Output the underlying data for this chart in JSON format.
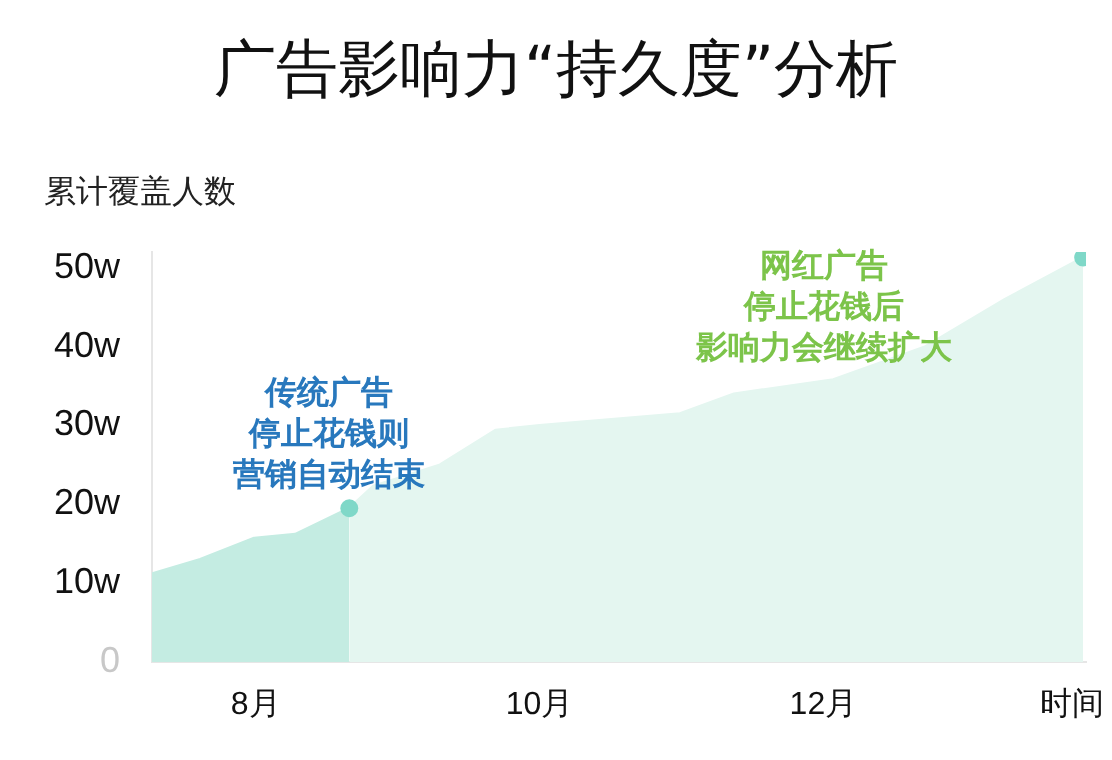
{
  "chart_data": {
    "type": "area",
    "title": "广告影响力“持久度”分析",
    "ylabel": "累计覆盖人数",
    "xlabel": "时间",
    "series": [
      {
        "color": "#c4ece2",
        "x": [
          7.27,
          7.61,
          7.99,
          8.28,
          8.66
        ],
        "values": [
          11.2,
          13,
          15.7,
          16.2,
          19.5
        ]
      },
      {
        "color": "#e4f6f0",
        "x": [
          8.66,
          8.83,
          9.3,
          9.69,
          10.0,
          10.99,
          11.37,
          12.07,
          12.72,
          13.28,
          13.83
        ],
        "values": [
          19.5,
          22.3,
          25,
          29.4,
          30,
          31.5,
          34,
          35.8,
          40,
          46,
          51.3
        ]
      },
      {
        "type": "scatter",
        "marker": "circle",
        "color": "#7fd8c8",
        "x": [
          8.66,
          13.83
        ],
        "values": [
          19.5,
          51.3
        ]
      }
    ],
    "xlim": [
      7.27,
      13.85
    ],
    "xticks": [
      {
        "value": 8,
        "label": "8月"
      },
      {
        "value": 10,
        "label": "10月"
      },
      {
        "value": 12,
        "label": "12月"
      }
    ],
    "ylim": [
      0,
      52
    ],
    "yticks": [
      0,
      {
        "value": 10,
        "label": "10w"
      },
      {
        "value": 20,
        "label": "20w"
      },
      {
        "value": 30,
        "label": "30w"
      },
      {
        "value": 40,
        "label": "40w"
      },
      {
        "value": 50,
        "label": "50w"
      }
    ],
    "grid": false,
    "legend": false,
    "annotations": [
      "传统广告",
      "停止花钱则",
      "营销自动结束",
      "网红广告",
      "停止花钱后",
      "影响力会继续扩大"
    ]
  }
}
